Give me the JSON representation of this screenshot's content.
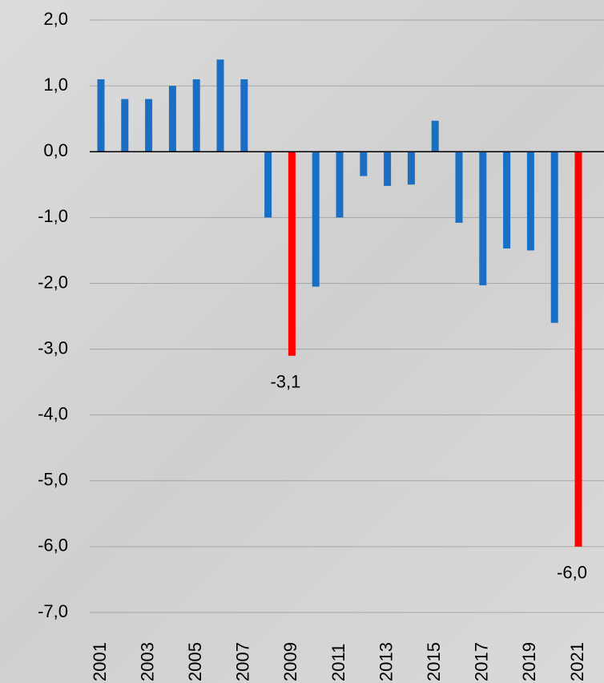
{
  "chart_data": {
    "type": "bar",
    "categories": [
      "2001",
      null,
      "2003",
      null,
      "2005",
      null,
      "2007",
      null,
      "2009",
      null,
      "2011",
      null,
      "2013",
      null,
      "2015",
      null,
      "2017",
      null,
      "2019",
      null,
      "2021"
    ],
    "values": [
      1.1,
      0.8,
      0.8,
      1.0,
      1.1,
      1.4,
      1.1,
      -1.0,
      -3.1,
      -2.05,
      -1.0,
      -0.37,
      -0.52,
      -0.5,
      0.47,
      -1.08,
      -2.03,
      -1.47,
      -1.5,
      -2.6,
      -6.0
    ],
    "value_labels": [
      null,
      null,
      null,
      null,
      null,
      null,
      null,
      null,
      "-3,1",
      null,
      null,
      null,
      null,
      null,
      null,
      null,
      null,
      null,
      null,
      null,
      "-6,0"
    ],
    "colors": [
      "#1a6fc4",
      "#1a6fc4",
      "#1a6fc4",
      "#1a6fc4",
      "#1a6fc4",
      "#1a6fc4",
      "#1a6fc4",
      "#1a6fc4",
      "#ff0000",
      "#1a6fc4",
      "#1a6fc4",
      "#1a6fc4",
      "#1a6fc4",
      "#1a6fc4",
      "#1a6fc4",
      "#1a6fc4",
      "#1a6fc4",
      "#1a6fc4",
      "#1a6fc4",
      "#1a6fc4",
      "#ff0000"
    ],
    "ylim": [
      -7.0,
      2.0
    ],
    "yticks": [
      {
        "value": 2.0,
        "label": "2,0"
      },
      {
        "value": 1.0,
        "label": "1,0"
      },
      {
        "value": 0.0,
        "label": "0,0"
      },
      {
        "value": -1.0,
        "label": "-1,0"
      },
      {
        "value": -2.0,
        "label": "-2,0"
      },
      {
        "value": -3.0,
        "label": "-3,0"
      },
      {
        "value": -4.0,
        "label": "-4,0"
      },
      {
        "value": -5.0,
        "label": "-5,0"
      },
      {
        "value": -6.0,
        "label": "-6,0"
      },
      {
        "value": -7.0,
        "label": "-7,0"
      }
    ],
    "grid": true
  }
}
